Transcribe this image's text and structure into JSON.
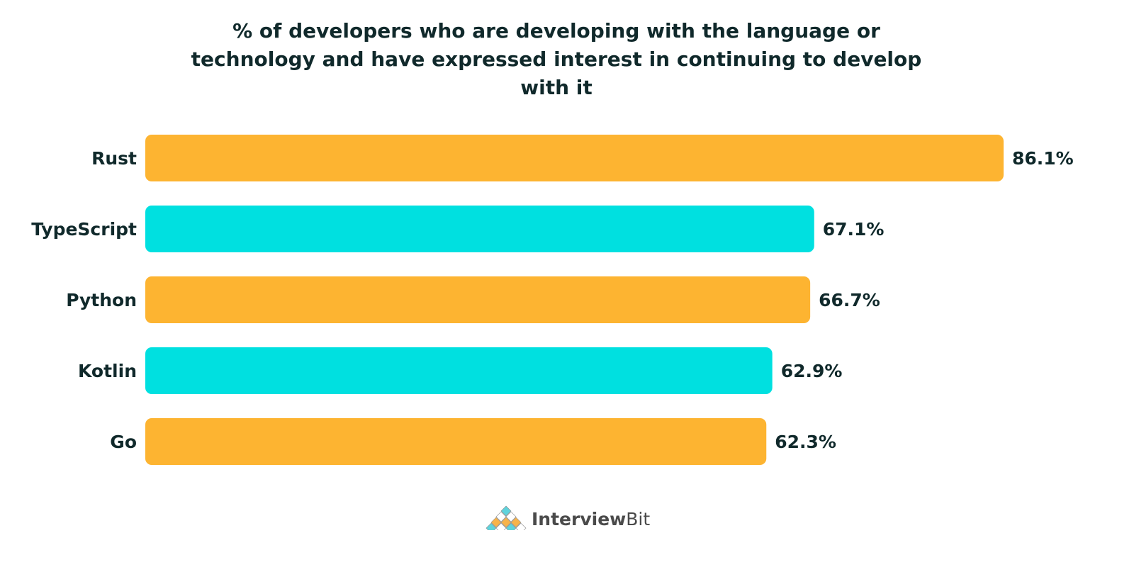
{
  "chart_data": {
    "type": "bar",
    "orientation": "horizontal",
    "title": "% of developers who are developing with the language or technology and have expressed interest in continuing to develop with it",
    "categories": [
      "Rust",
      "TypeScript",
      "Python",
      "Kotlin",
      "Go"
    ],
    "values": [
      86.1,
      67.1,
      66.7,
      62.9,
      62.3
    ],
    "value_labels": [
      "86.1%",
      "67.1%",
      "66.7%",
      "62.9%",
      "62.3%"
    ],
    "bar_colors": [
      "#fdb431",
      "#00e0e0",
      "#fdb431",
      "#00e0e0",
      "#fdb431"
    ],
    "xlim": [
      0,
      86.1
    ],
    "grid": false,
    "legend": "none"
  },
  "branding": {
    "logo_text_bold": "Interview",
    "logo_text_light": "Bit"
  }
}
